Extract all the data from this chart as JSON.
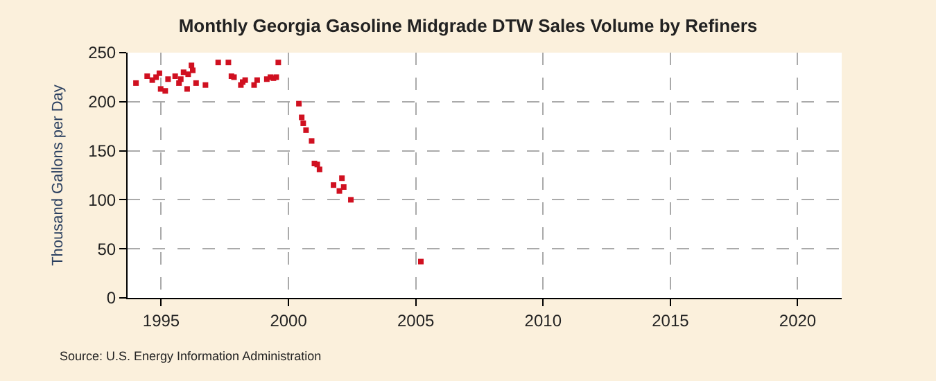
{
  "chart_data": {
    "type": "scatter",
    "title": "Monthly Georgia Gasoline Midgrade DTW Sales Volume by Refiners",
    "ylabel": "Thousand Gallons per Day",
    "x": [
      1994.01,
      1994.45,
      1994.65,
      1994.8,
      1994.93,
      1994.98,
      1995.16,
      1995.27,
      1995.55,
      1995.7,
      1995.77,
      1995.88,
      1996.02,
      1996.06,
      1996.19,
      1996.24,
      1996.37,
      1996.74,
      1997.24,
      1997.64,
      1997.76,
      1997.86,
      1998.13,
      1998.2,
      1998.3,
      1998.65,
      1998.77,
      1999.15,
      1999.29,
      1999.41,
      1999.52,
      1999.6,
      2000.41,
      2000.52,
      2000.58,
      2000.69,
      2000.91,
      2001.02,
      2001.13,
      2001.22,
      2001.77,
      2002.0,
      2002.1,
      2002.17,
      2002.45,
      2005.2
    ],
    "series": [
      {
        "color": "#d01020",
        "values": [
          219,
          226,
          222,
          225,
          229,
          213,
          211,
          223,
          226,
          219,
          223,
          230,
          213,
          228,
          237,
          232,
          219,
          217,
          240,
          240,
          226,
          225,
          217,
          220,
          222,
          217,
          222,
          223,
          225,
          224,
          225,
          240,
          198,
          184,
          178,
          171,
          160,
          137,
          136,
          131,
          115,
          109,
          122,
          113,
          100,
          37
        ]
      }
    ],
    "xlim": [
      1993.68,
      2021.73
    ],
    "xticks": [
      1995,
      2000,
      2005,
      2010,
      2015,
      2020
    ],
    "ylim": [
      0,
      250
    ],
    "yticks": [
      0,
      50,
      100,
      150,
      200,
      250
    ],
    "grid": true,
    "marker": "square",
    "legend": false,
    "annotations": [
      "Source: U.S. Energy Information Administration"
    ]
  }
}
